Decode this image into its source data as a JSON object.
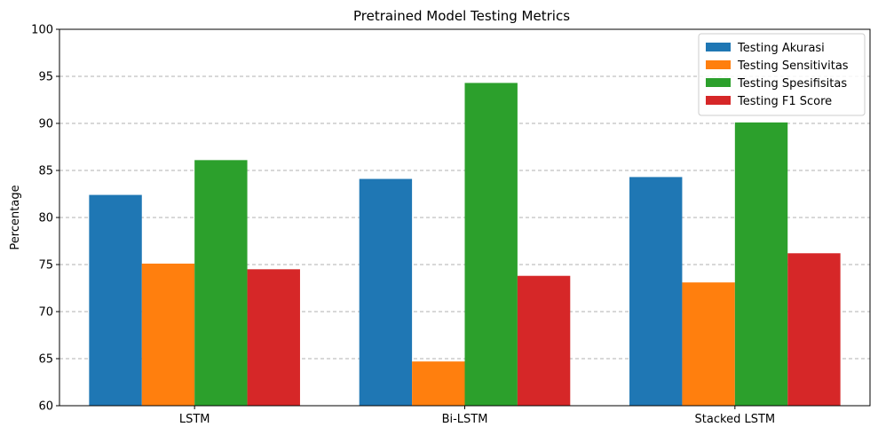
{
  "chart_data": {
    "type": "bar",
    "title": "Pretrained Model Testing Metrics",
    "xlabel": "",
    "ylabel": "Percentage",
    "ylim": [
      60,
      100
    ],
    "yticks": [
      60,
      65,
      70,
      75,
      80,
      85,
      90,
      95,
      100
    ],
    "grid": "y-dashed",
    "legend_position": "top-right",
    "categories": [
      "LSTM",
      "Bi-LSTM",
      "Stacked LSTM"
    ],
    "series": [
      {
        "name": "Testing Akurasi",
        "color": "#1f77b4",
        "values": [
          82.4,
          84.1,
          84.3
        ]
      },
      {
        "name": "Testing Sensitivitas",
        "color": "#ff7f0e",
        "values": [
          75.1,
          64.7,
          73.1
        ]
      },
      {
        "name": "Testing Spesifisitas",
        "color": "#2ca02c",
        "values": [
          86.1,
          94.3,
          90.1
        ]
      },
      {
        "name": "Testing F1 Score",
        "color": "#d62728",
        "values": [
          74.5,
          73.8,
          76.2
        ]
      }
    ]
  }
}
